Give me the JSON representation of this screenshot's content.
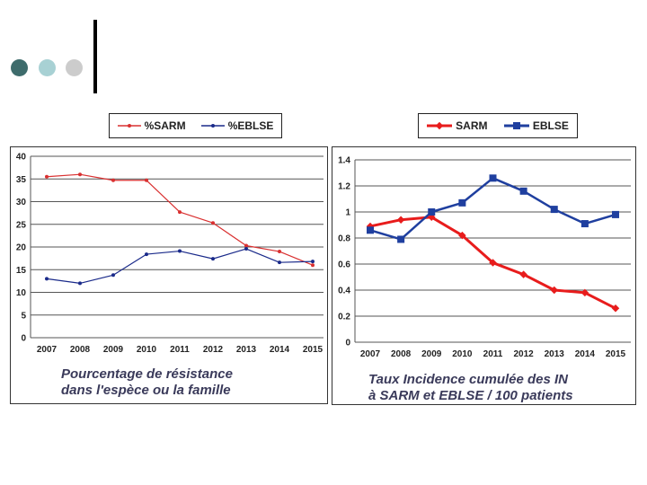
{
  "decor": {
    "dot_colors": [
      "#3e6c6c",
      "#a8d1d4",
      "#cccccc"
    ]
  },
  "chart_data": [
    {
      "type": "line",
      "x": [
        "2007",
        "2008",
        "2009",
        "2010",
        "2011",
        "2012",
        "2013",
        "2014",
        "2015"
      ],
      "series": [
        {
          "name": "%SARM",
          "color": "#d93030",
          "values": [
            35.5,
            36.0,
            34.7,
            34.7,
            27.7,
            25.3,
            20.3,
            19.0,
            16.0
          ]
        },
        {
          "name": "%EBLSE",
          "color": "#1a2a8a",
          "values": [
            13.0,
            12.0,
            13.8,
            18.4,
            19.1,
            17.4,
            19.6,
            16.6,
            16.8
          ]
        }
      ],
      "yticks": [
        "0",
        "5",
        "10",
        "15",
        "20",
        "25",
        "30",
        "35",
        "40"
      ],
      "ylim": [
        0,
        40
      ],
      "legend": "top",
      "caption": [
        "Pourcentage de résistance",
        "dans l'espèce ou la famille"
      ]
    },
    {
      "type": "line",
      "x": [
        "2007",
        "2008",
        "2009",
        "2010",
        "2011",
        "2012",
        "2013",
        "2014",
        "2015"
      ],
      "series": [
        {
          "name": "SARM",
          "color": "#e81c1c",
          "values": [
            0.89,
            0.94,
            0.96,
            0.82,
            0.61,
            0.52,
            0.4,
            0.38,
            0.26
          ]
        },
        {
          "name": "EBLSE",
          "color": "#1f3f9f",
          "values": [
            0.86,
            0.79,
            1.0,
            1.07,
            1.26,
            1.16,
            1.02,
            0.91,
            0.98
          ]
        }
      ],
      "yticks": [
        "0",
        "0.2",
        "0.4",
        "0.6",
        "0.8",
        "1",
        "1.2",
        "1.4"
      ],
      "ylim": [
        0,
        1.4
      ],
      "legend": "top",
      "caption": [
        "Taux Incidence cumulée des IN",
        "à SARM et EBLSE / 100 patients"
      ]
    }
  ]
}
